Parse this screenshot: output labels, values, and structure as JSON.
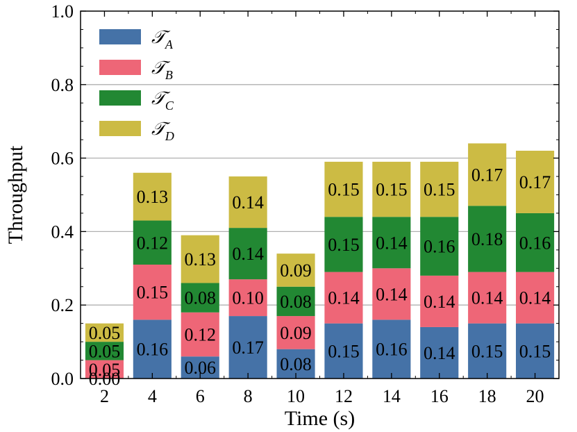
{
  "chart_data": {
    "type": "bar",
    "stacked": true,
    "title": "",
    "xlabel": "Time (s)",
    "ylabel": "Throughput",
    "ylim": [
      0,
      1.0
    ],
    "yticks": [
      "0.0",
      "0.2",
      "0.4",
      "0.6",
      "0.8",
      "1.0"
    ],
    "grid": "horizontal",
    "legend_position": "top-left",
    "categories": [
      "2",
      "4",
      "6",
      "8",
      "10",
      "12",
      "14",
      "16",
      "18",
      "20"
    ],
    "series": [
      {
        "name": "T_A",
        "legend_main": "𝒯",
        "legend_sub": "A",
        "color": "#4572a7",
        "values": [
          0.0,
          0.16,
          0.06,
          0.17,
          0.08,
          0.15,
          0.16,
          0.14,
          0.15,
          0.15
        ],
        "labels": [
          "0.00",
          "0.16",
          "0.06",
          "0.17",
          "0.08",
          "0.15",
          "0.16",
          "0.14",
          "0.15",
          "0.15"
        ]
      },
      {
        "name": "T_B",
        "legend_main": "𝒯",
        "legend_sub": "B",
        "color": "#ee6677",
        "values": [
          0.05,
          0.15,
          0.12,
          0.1,
          0.09,
          0.14,
          0.14,
          0.14,
          0.14,
          0.14
        ],
        "labels": [
          "0.05",
          "0.15",
          "0.12",
          "0.10",
          "0.09",
          "0.14",
          "0.14",
          "0.14",
          "0.14",
          "0.14"
        ]
      },
      {
        "name": "T_C",
        "legend_main": "𝒯",
        "legend_sub": "C",
        "color": "#228833",
        "values": [
          0.05,
          0.12,
          0.08,
          0.14,
          0.08,
          0.15,
          0.14,
          0.16,
          0.18,
          0.16
        ],
        "labels": [
          "0.05",
          "0.12",
          "0.08",
          "0.14",
          "0.08",
          "0.15",
          "0.14",
          "0.16",
          "0.18",
          "0.16"
        ]
      },
      {
        "name": "T_D",
        "legend_main": "𝒯",
        "legend_sub": "D",
        "color": "#ccbb44",
        "values": [
          0.05,
          0.13,
          0.13,
          0.14,
          0.09,
          0.15,
          0.15,
          0.15,
          0.17,
          0.17
        ],
        "labels": [
          "0.05",
          "0.13",
          "0.13",
          "0.14",
          "0.09",
          "0.15",
          "0.15",
          "0.15",
          "0.17",
          "0.17"
        ]
      }
    ]
  }
}
